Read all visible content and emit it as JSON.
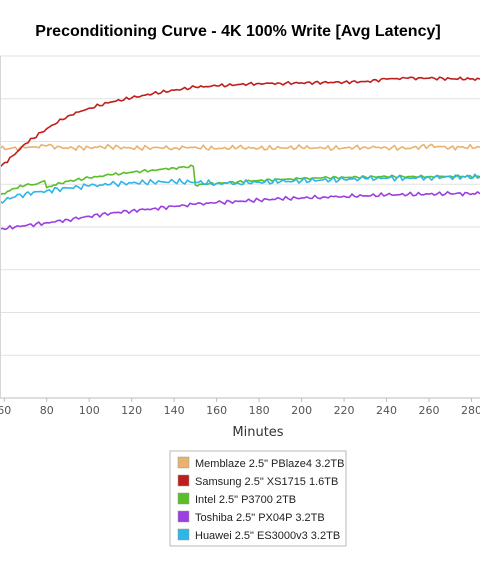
{
  "chart_data": {
    "type": "line",
    "title": "Preconditioning Curve - 4K 100% Write [Avg Latency]",
    "xlabel": "Minutes",
    "ylabel": "",
    "x_ticks": [
      60,
      80,
      100,
      120,
      140,
      160,
      180,
      200,
      220,
      240,
      260,
      280
    ],
    "xlim": [
      58,
      284
    ],
    "ylim": [
      0,
      8
    ],
    "grid": true,
    "legend_position": "bottom-center",
    "series": [
      {
        "name": "Memblaze 2.5\" PBlaze4 3.2TB",
        "color": "#e8b26f",
        "x": [
          58,
          70,
          80,
          90,
          100,
          110,
          120,
          130,
          140,
          150,
          160,
          170,
          180,
          190,
          200,
          210,
          220,
          230,
          240,
          250,
          260,
          270,
          284
        ],
        "y": [
          5.83,
          5.85,
          5.9,
          5.84,
          5.86,
          5.88,
          5.84,
          5.86,
          5.85,
          5.87,
          5.83,
          5.86,
          5.84,
          5.85,
          5.86,
          5.84,
          5.85,
          5.87,
          5.86,
          5.84,
          5.9,
          5.86,
          5.87
        ]
      },
      {
        "name": "Samsung 2.5\" XS1715 1.6TB",
        "color": "#bf1e1e",
        "x": [
          58,
          65,
          70,
          80,
          90,
          100,
          110,
          120,
          130,
          140,
          150,
          160,
          170,
          180,
          190,
          200,
          210,
          220,
          230,
          240,
          250,
          260,
          270,
          284
        ],
        "y": [
          5.4,
          5.7,
          5.95,
          6.3,
          6.6,
          6.78,
          6.92,
          7.02,
          7.12,
          7.2,
          7.27,
          7.3,
          7.33,
          7.36,
          7.36,
          7.37,
          7.38,
          7.39,
          7.4,
          7.46,
          7.48,
          7.48,
          7.47,
          7.46
        ]
      },
      {
        "name": "Intel 2.5\" P3700 2TB",
        "color": "#5abe28",
        "x": [
          58,
          65,
          70,
          75,
          79,
          80,
          81,
          90,
          100,
          110,
          120,
          130,
          140,
          149,
          150,
          152,
          160,
          170,
          180,
          190,
          200,
          210,
          220,
          230,
          240,
          250,
          260,
          270,
          284
        ],
        "y": [
          4.75,
          4.9,
          4.98,
          5.0,
          5.08,
          4.92,
          4.95,
          5.07,
          5.15,
          5.22,
          5.28,
          5.33,
          5.38,
          5.42,
          4.98,
          5.0,
          5.02,
          5.06,
          5.09,
          5.11,
          5.13,
          5.15,
          5.16,
          5.17,
          5.18,
          5.18,
          5.18,
          5.19,
          5.18
        ]
      },
      {
        "name": "Toshiba 2.5\" PX04P 3.2TB",
        "color": "#9b3fe0",
        "x": [
          58,
          65,
          70,
          80,
          90,
          100,
          110,
          120,
          130,
          140,
          150,
          160,
          170,
          180,
          190,
          200,
          210,
          220,
          230,
          240,
          250,
          260,
          270,
          284
        ],
        "y": [
          3.95,
          4.0,
          4.03,
          4.1,
          4.17,
          4.25,
          4.32,
          4.38,
          4.43,
          4.48,
          4.53,
          4.57,
          4.6,
          4.63,
          4.66,
          4.68,
          4.7,
          4.72,
          4.73,
          4.75,
          4.76,
          4.77,
          4.78,
          4.78
        ]
      },
      {
        "name": "Huawei 2.5\" ES3000v3 3.2TB",
        "color": "#2db6e8",
        "x": [
          58,
          65,
          70,
          80,
          90,
          100,
          110,
          120,
          130,
          140,
          150,
          160,
          170,
          180,
          190,
          200,
          210,
          220,
          230,
          240,
          250,
          260,
          270,
          284
        ],
        "y": [
          4.6,
          4.7,
          4.78,
          4.85,
          4.91,
          4.96,
          5.0,
          5.03,
          5.05,
          5.06,
          5.05,
          5.02,
          5.03,
          5.05,
          5.06,
          5.08,
          5.1,
          5.11,
          5.13,
          5.14,
          5.15,
          5.16,
          5.17,
          5.17
        ]
      }
    ]
  }
}
